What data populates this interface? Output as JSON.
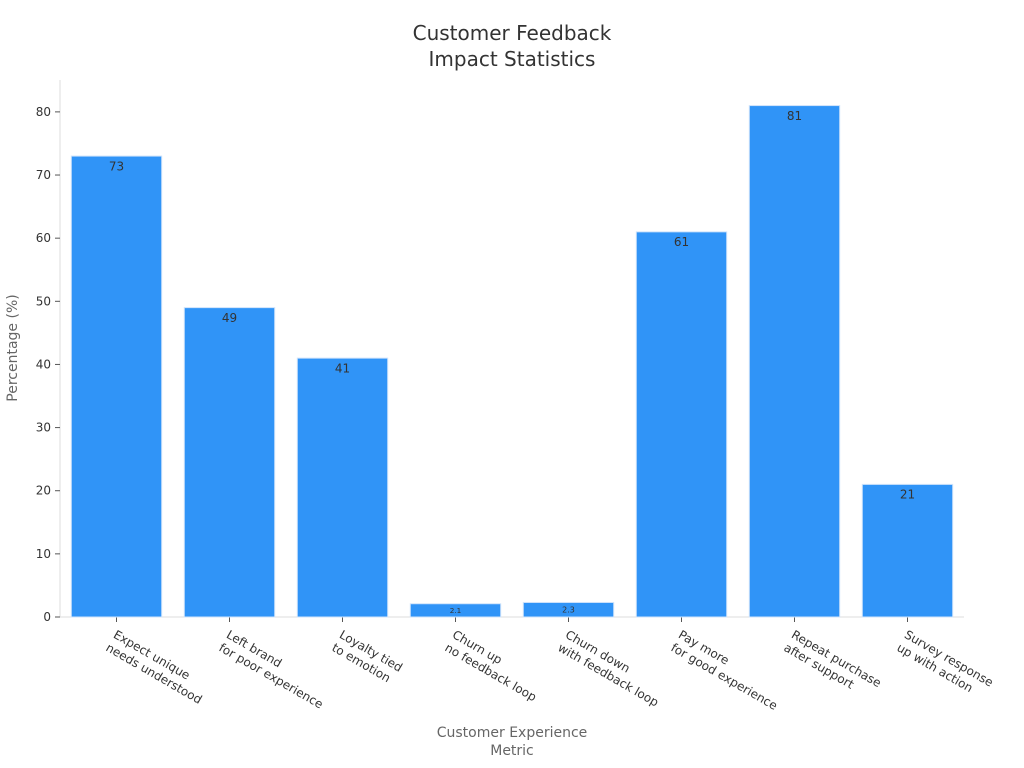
{
  "chart_data": {
    "type": "bar",
    "title": "Customer Feedback\nImpact Statistics",
    "x_label": "Customer Experience\nMetric",
    "y_label": "Percentage (%)",
    "categories": [
      "Expect unique\nneeds understood",
      "Left brand\nfor poor experience",
      "Loyalty tied\nto emotion",
      "Churn up\nno feedback loop",
      "Churn down\nwith feedback loop",
      "Pay more\nfor good experience",
      "Repeat purchase\nafter support",
      "Survey response\nup with action"
    ],
    "values": [
      73,
      49,
      41,
      2.1,
      2.3,
      61,
      81,
      21
    ],
    "color": "#3094f7",
    "ylim": [
      0,
      85.05
    ],
    "yticks": [
      0,
      10,
      20,
      30,
      40,
      50,
      60,
      70,
      80
    ],
    "grid": false
  }
}
